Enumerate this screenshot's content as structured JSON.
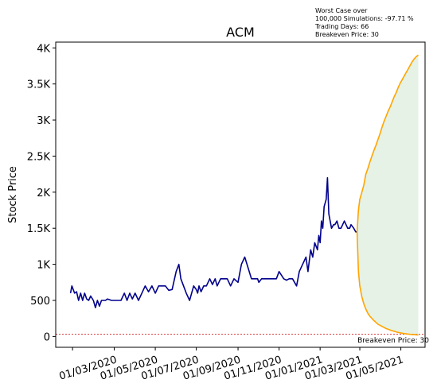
{
  "chart_data": {
    "type": "line",
    "title": "ACM",
    "ylabel": "Stock Price",
    "xlabel": "",
    "annotation": [
      "Worst Case over",
      "100,000 Simulations: -97.71 %",
      "Trading Days: 66",
      "Breakeven Price: 30"
    ],
    "breakeven_label": "Breakeven Price: 30",
    "breakeven": 30,
    "xlim": [
      "2019-12-09",
      "2021-06-10"
    ],
    "ylim": [
      -150,
      4080
    ],
    "x_ticks": [
      "2020-01-03",
      "2020-03-05",
      "2020-05-05",
      "2020-07-05",
      "2020-09-05",
      "2020-11-05",
      "2021-01-05",
      "2021-03-05",
      "2021-05-05"
    ],
    "x_tick_labels": [
      "01/03/2020",
      "01/05/2020",
      "01/07/2020",
      "01/09/2020",
      "01/11/2020",
      "01/01/2021",
      "01/03/2021",
      "01/05/2021"
    ],
    "x_tick_label_offset": 1,
    "y_ticks": [
      0,
      500,
      1000,
      1500,
      2000,
      2500,
      3000,
      3500,
      4000
    ],
    "y_tick_labels": [
      "0",
      "500",
      "1K",
      "1.5K",
      "2K",
      "2.5K",
      "3K",
      "3.5K",
      "4K"
    ],
    "colors": {
      "history": "#00008b",
      "simulation": "#ffa500",
      "fill": "#e5f2e5",
      "breakeven": "#cc0000"
    },
    "history": {
      "x": [
        "2019-12-31",
        "2020-01-02",
        "2020-01-06",
        "2020-01-09",
        "2020-01-12",
        "2020-01-15",
        "2020-01-18",
        "2020-01-21",
        "2020-01-24",
        "2020-01-27",
        "2020-01-30",
        "2020-02-03",
        "2020-02-06",
        "2020-02-09",
        "2020-02-12",
        "2020-02-15",
        "2020-02-18",
        "2020-02-21",
        "2020-02-24",
        "2020-03-01",
        "2020-03-05",
        "2020-03-10",
        "2020-03-15",
        "2020-03-20",
        "2020-03-24",
        "2020-03-28",
        "2020-04-01",
        "2020-04-05",
        "2020-04-10",
        "2020-04-15",
        "2020-04-20",
        "2020-04-25",
        "2020-04-30",
        "2020-05-05",
        "2020-05-10",
        "2020-05-15",
        "2020-05-20",
        "2020-05-25",
        "2020-05-30",
        "2020-06-05",
        "2020-06-09",
        "2020-06-12",
        "2020-06-16",
        "2020-06-20",
        "2020-06-25",
        "2020-07-01",
        "2020-07-05",
        "2020-07-07",
        "2020-07-09",
        "2020-07-12",
        "2020-07-16",
        "2020-07-20",
        "2020-07-25",
        "2020-07-29",
        "2020-08-02",
        "2020-08-05",
        "2020-08-10",
        "2020-08-15",
        "2020-08-20",
        "2020-08-25",
        "2020-08-30",
        "2020-09-05",
        "2020-09-10",
        "2020-09-15",
        "2020-09-20",
        "2020-09-25",
        "2020-09-30",
        "2020-10-04",
        "2020-10-06",
        "2020-10-10",
        "2020-10-15",
        "2020-10-20",
        "2020-10-25",
        "2020-11-01",
        "2020-11-05",
        "2020-11-12",
        "2020-11-16",
        "2020-11-20",
        "2020-11-25",
        "2020-12-01",
        "2020-12-05",
        "2020-12-10",
        "2020-12-15",
        "2020-12-18",
        "2020-12-22",
        "2020-12-25",
        "2020-12-28",
        "2021-01-01",
        "2021-01-03",
        "2021-01-05",
        "2021-01-07",
        "2021-01-09",
        "2021-01-11",
        "2021-01-14",
        "2021-01-16",
        "2021-01-18",
        "2021-01-20",
        "2021-01-22",
        "2021-01-25",
        "2021-01-27",
        "2021-01-30",
        "2021-02-02",
        "2021-02-05",
        "2021-02-10",
        "2021-02-15",
        "2021-02-18",
        "2021-02-20",
        "2021-02-24",
        "2021-02-27",
        "2021-03-01"
      ],
      "y": [
        600,
        700,
        600,
        620,
        500,
        600,
        500,
        600,
        520,
        500,
        560,
        500,
        400,
        500,
        420,
        500,
        500,
        500,
        520,
        500,
        500,
        500,
        500,
        600,
        500,
        600,
        520,
        600,
        500,
        600,
        700,
        620,
        700,
        600,
        700,
        700,
        700,
        640,
        650,
        900,
        1000,
        800,
        700,
        600,
        500,
        700,
        650,
        600,
        700,
        620,
        700,
        700,
        800,
        720,
        800,
        700,
        800,
        800,
        800,
        700,
        800,
        750,
        1000,
        1100,
        950,
        800,
        800,
        800,
        750,
        800,
        800,
        800,
        800,
        800,
        900,
        800,
        780,
        800,
        800,
        700,
        900,
        1000,
        1100,
        900,
        1200,
        1100,
        1300,
        1200,
        1400,
        1300,
        1600,
        1500,
        1800,
        1900,
        2200,
        1700,
        1600,
        1500,
        1550,
        1550,
        1600,
        1500,
        1500,
        1600,
        1500,
        1500,
        1550,
        1500,
        1450,
        1450
      ],
      "name": ""
    },
    "simulation": {
      "x": [
        "2021-03-01",
        "2021-03-03",
        "2021-03-05",
        "2021-03-08",
        "2021-03-11",
        "2021-03-14",
        "2021-03-17",
        "2021-03-20",
        "2021-03-23",
        "2021-03-26",
        "2021-03-29",
        "2021-04-01",
        "2021-04-04",
        "2021-04-07",
        "2021-04-10",
        "2021-04-13",
        "2021-04-16",
        "2021-04-19",
        "2021-04-22",
        "2021-04-25",
        "2021-04-28",
        "2021-05-01",
        "2021-05-04",
        "2021-05-07",
        "2021-05-10",
        "2021-05-13",
        "2021-05-16",
        "2021-05-19",
        "2021-05-22",
        "2021-05-25",
        "2021-05-28",
        "2021-05-31"
      ],
      "upper": [
        1450,
        1750,
        1900,
        2000,
        2100,
        2250,
        2330,
        2420,
        2500,
        2580,
        2650,
        2730,
        2810,
        2900,
        2980,
        3050,
        3120,
        3180,
        3250,
        3320,
        3380,
        3450,
        3510,
        3560,
        3610,
        3660,
        3710,
        3760,
        3810,
        3850,
        3880,
        3900
      ],
      "lower": [
        1450,
        900,
        700,
        550,
        450,
        380,
        320,
        280,
        250,
        220,
        195,
        170,
        155,
        140,
        125,
        110,
        100,
        90,
        80,
        72,
        64,
        56,
        50,
        45,
        40,
        36,
        33,
        30,
        27,
        25,
        23,
        20
      ],
      "name": ""
    }
  }
}
